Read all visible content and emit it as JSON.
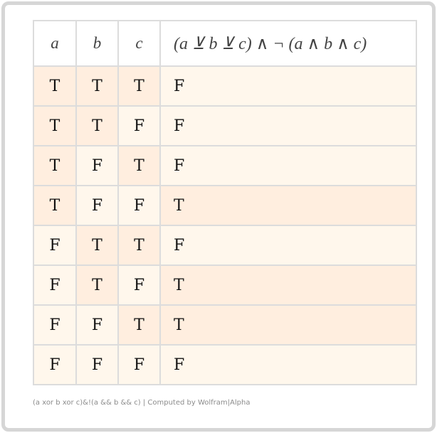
{
  "table": {
    "headers": [
      "a",
      "b",
      "c",
      "(a ⊻ b ⊻ c) ∧ ¬ (a ∧ b ∧ c)"
    ],
    "rows": [
      [
        "T",
        "T",
        "T",
        "F"
      ],
      [
        "T",
        "T",
        "F",
        "F"
      ],
      [
        "T",
        "F",
        "T",
        "F"
      ],
      [
        "T",
        "F",
        "F",
        "T"
      ],
      [
        "F",
        "T",
        "T",
        "F"
      ],
      [
        "F",
        "T",
        "F",
        "T"
      ],
      [
        "F",
        "F",
        "T",
        "T"
      ],
      [
        "F",
        "F",
        "F",
        "F"
      ]
    ]
  },
  "colors": {
    "true_cell": "#ffeedf",
    "false_cell": "#fff7ec",
    "border": "#dcdcdc"
  },
  "footer": {
    "text": "(a xor b xor c)&!(a && b && c) | Computed by Wolfram|Alpha"
  }
}
